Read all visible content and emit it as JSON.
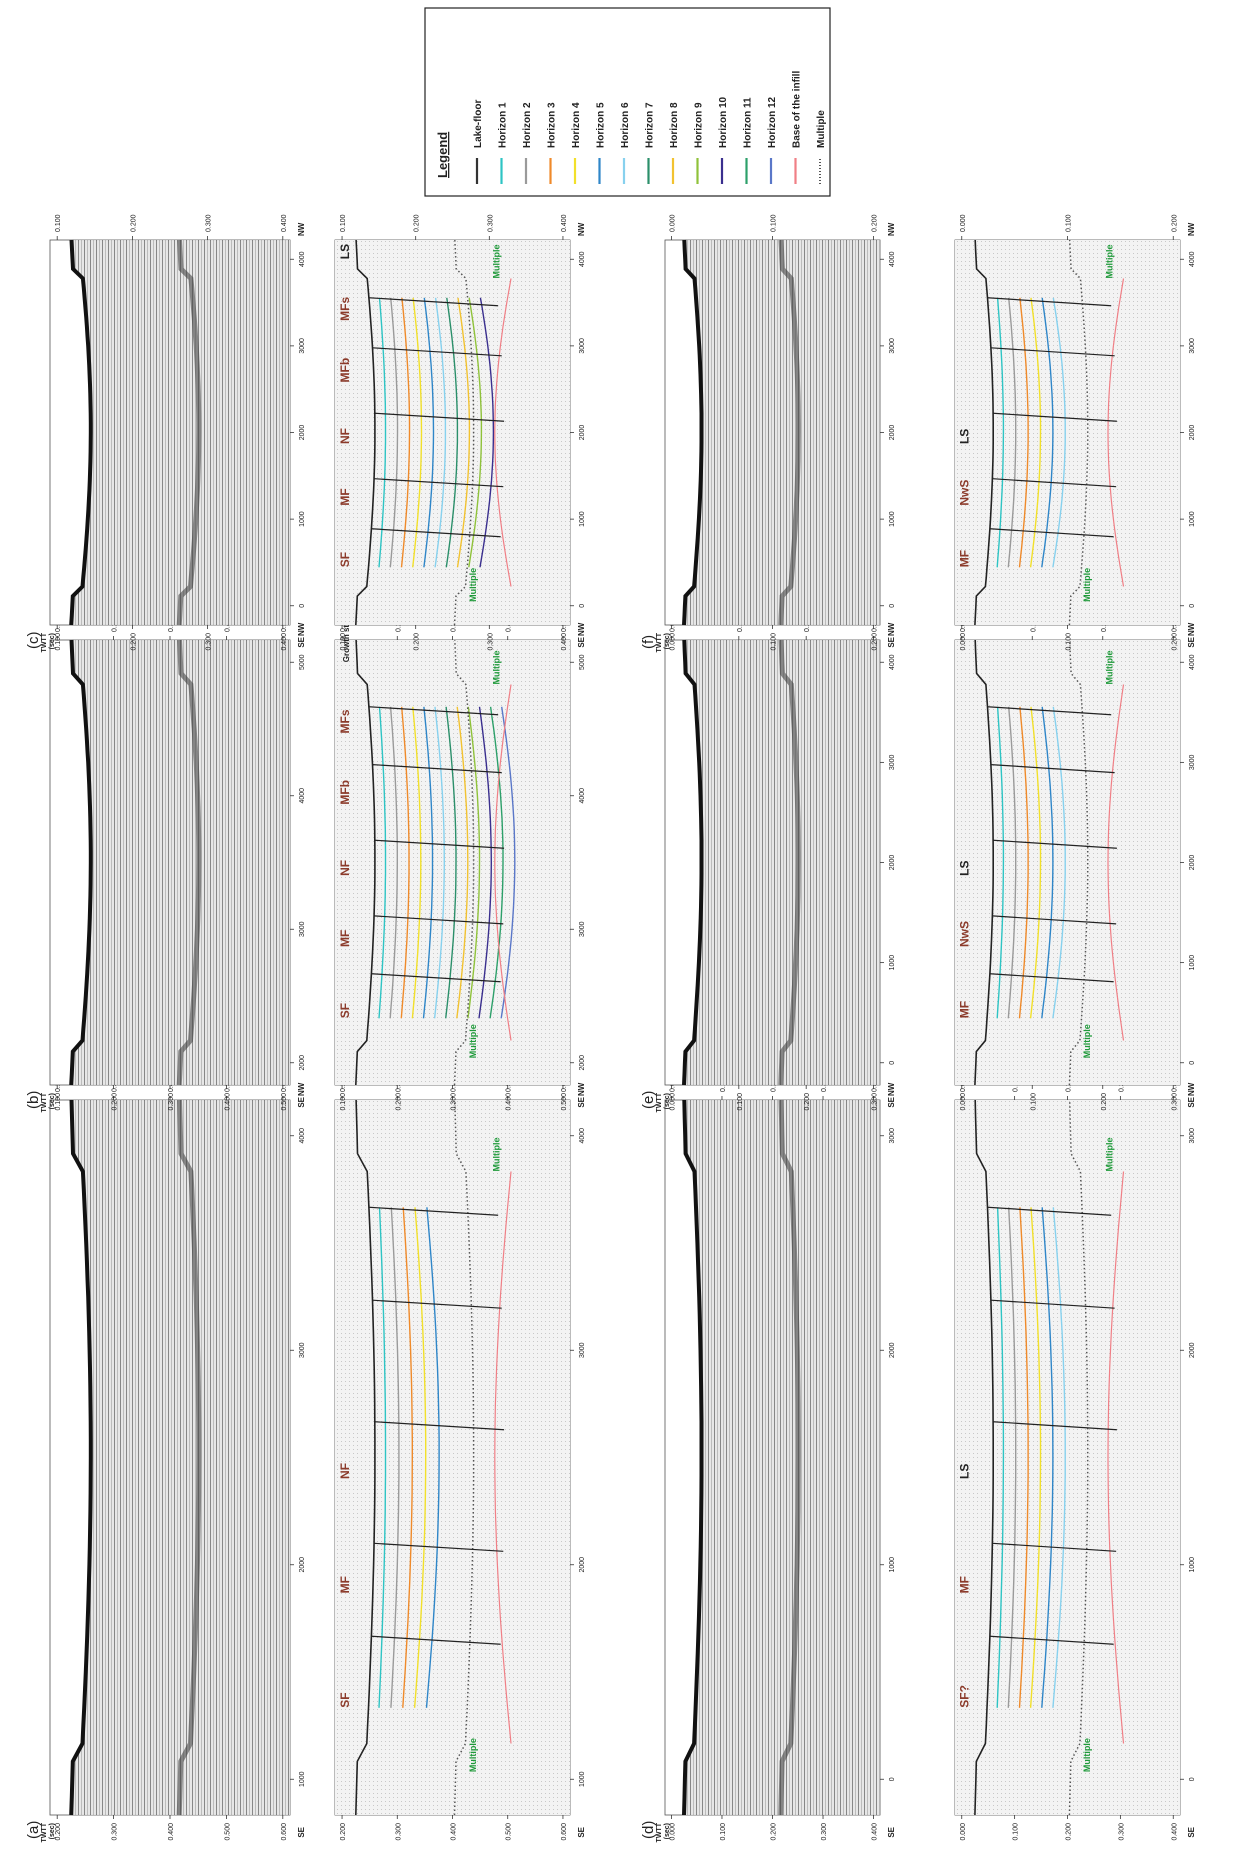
{
  "legend": {
    "title": "Legend",
    "entries": [
      {
        "label": "Lake-floor",
        "color": "#333333",
        "style": "solid"
      },
      {
        "label": "Horizon 1",
        "color": "#2ec4c4",
        "style": "solid"
      },
      {
        "label": "Horizon 2",
        "color": "#9a9a9a",
        "style": "solid"
      },
      {
        "label": "Horizon 3",
        "color": "#ef8a2a",
        "style": "solid"
      },
      {
        "label": "Horizon 4",
        "color": "#f2e02a",
        "style": "solid"
      },
      {
        "label": "Horizon 5",
        "color": "#2f86c8",
        "style": "solid"
      },
      {
        "label": "Horizon 6",
        "color": "#87d1ee",
        "style": "solid"
      },
      {
        "label": "Horizon 7",
        "color": "#2b8f6a",
        "style": "solid"
      },
      {
        "label": "Horizon 8",
        "color": "#f2c230",
        "style": "solid"
      },
      {
        "label": "Horizon 9",
        "color": "#8fc23a",
        "style": "solid"
      },
      {
        "label": "Horizon 10",
        "color": "#3a2f8e",
        "style": "solid"
      },
      {
        "label": "Horizon 11",
        "color": "#2da06a",
        "style": "solid"
      },
      {
        "label": "Horizon 12",
        "color": "#5a77c8",
        "style": "solid"
      },
      {
        "label": "Base of the infill",
        "color": "#f07f86",
        "style": "solid"
      },
      {
        "label": "Multiple",
        "color": "#555555",
        "style": "dotted"
      }
    ]
  },
  "common": {
    "se": "SE",
    "nw": "NW",
    "twtt": "TWTT",
    "sec": "(sec)",
    "multiple": "Multiple"
  },
  "panels": [
    {
      "id": "a",
      "letter": "(a)",
      "dist_ticks": [
        "1000",
        "2000",
        "3000",
        "4000"
      ],
      "twtt_ticks": [
        "0.200",
        "0.300",
        "0.400",
        "0.500",
        "0.600"
      ],
      "labels": [
        "SF",
        "MF",
        "NF"
      ]
    },
    {
      "id": "b",
      "letter": "(b)",
      "dist_ticks": [
        "2000",
        "3000",
        "4000",
        "5000"
      ],
      "twtt_ticks": [
        "0.100",
        "0.200",
        "0.300",
        "0.400",
        "0.500"
      ],
      "labels": [
        "SF",
        "MF",
        "NF",
        "MFb",
        "MFs",
        "Growth strata"
      ]
    },
    {
      "id": "c",
      "letter": "(c)",
      "dist_ticks": [
        "0",
        "1000",
        "2000",
        "3000",
        "4000"
      ],
      "twtt_ticks": [
        "0.100",
        "0.200",
        "0.300",
        "0.400"
      ],
      "labels": [
        "SF",
        "MF",
        "NF",
        "MFb",
        "MFs",
        "LS"
      ]
    },
    {
      "id": "d",
      "letter": "(d)",
      "dist_ticks": [
        "0",
        "1000",
        "2000",
        "3000"
      ],
      "twtt_ticks": [
        "0.000",
        "0.100",
        "0.200",
        "0.300",
        "0.400"
      ],
      "labels": [
        "SF?",
        "MF",
        "LS"
      ]
    },
    {
      "id": "e",
      "letter": "(e)",
      "dist_ticks": [
        "0",
        "1000",
        "2000",
        "3000",
        "4000"
      ],
      "twtt_ticks": [
        "0.000",
        "0.100",
        "0.200",
        "0.300"
      ],
      "labels": [
        "MF",
        "NwS",
        "LS"
      ]
    },
    {
      "id": "f",
      "letter": "(f)",
      "dist_ticks": [
        "0",
        "1000",
        "2000",
        "3000",
        "4000"
      ],
      "twtt_ticks": [
        "0.000",
        "0.100",
        "0.200"
      ],
      "labels": [
        "MF",
        "NwS",
        "LS"
      ]
    }
  ]
}
